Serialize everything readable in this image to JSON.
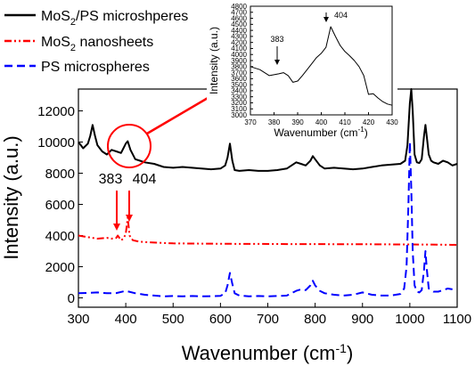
{
  "legend": [
    {
      "label_main": "MoS",
      "label_sub": "2",
      "label_rest": "/PS microshperes",
      "color": "#000000",
      "dash": "solid"
    },
    {
      "label_main": "MoS",
      "label_sub": "2",
      "label_rest": " nanosheets",
      "color": "#ff0000",
      "dash": "dashdotdot"
    },
    {
      "label_main": "PS microspheres",
      "label_sub": "",
      "label_rest": "",
      "color": "#0000ff",
      "dash": "dash"
    }
  ],
  "annotations": {
    "peak_a": "383",
    "peak_b": "404",
    "arrow_color": "#ff0000"
  },
  "chart_data": [
    {
      "type": "line",
      "xlabel_main": "Wavenumber (cm",
      "xlabel_sup": "-1",
      "xlabel_end": ")",
      "ylabel": "Intensity (a.u.)",
      "xlim": [
        300,
        1100
      ],
      "ylim": [
        -600,
        13400
      ],
      "xticks": [
        300,
        400,
        500,
        600,
        700,
        800,
        900,
        1000,
        1100
      ],
      "yticks": [
        0,
        2000,
        4000,
        6000,
        8000,
        10000,
        12000
      ],
      "series": [
        {
          "name": "MoS2/PS microshperes",
          "color": "#000000",
          "x": [
            300,
            310,
            320,
            325,
            330,
            335,
            340,
            350,
            360,
            370,
            380,
            390,
            395,
            400,
            404,
            410,
            420,
            430,
            440,
            460,
            480,
            500,
            520,
            540,
            560,
            580,
            600,
            610,
            615,
            620,
            625,
            630,
            640,
            660,
            680,
            700,
            720,
            740,
            750,
            760,
            770,
            780,
            790,
            795,
            800,
            810,
            820,
            840,
            860,
            880,
            900,
            920,
            940,
            960,
            980,
            990,
            995,
            1000,
            1003,
            1006,
            1010,
            1015,
            1020,
            1025,
            1030,
            1033,
            1036,
            1040,
            1045,
            1050,
            1060,
            1070,
            1080,
            1090,
            1100
          ],
          "y": [
            10000,
            9600,
            9900,
            10400,
            11100,
            10400,
            9800,
            9400,
            9200,
            9500,
            9400,
            9300,
            9600,
            9900,
            10050,
            9500,
            8900,
            8800,
            8700,
            8600,
            8400,
            8350,
            8400,
            8350,
            8300,
            8250,
            8300,
            8500,
            9000,
            9900,
            8800,
            8200,
            8150,
            8200,
            8150,
            8150,
            8200,
            8300,
            8500,
            8700,
            8600,
            8500,
            8800,
            9100,
            8900,
            8500,
            8300,
            8350,
            8300,
            8250,
            8300,
            8400,
            8500,
            8550,
            8600,
            8800,
            9800,
            12500,
            14200,
            12000,
            9200,
            8700,
            8650,
            8900,
            10400,
            11100,
            10300,
            9200,
            8800,
            8700,
            8600,
            8800,
            8700,
            8500,
            8600
          ]
        },
        {
          "name": "MoS2 nanosheets",
          "color": "#ff0000",
          "x": [
            300,
            320,
            340,
            360,
            370,
            380,
            383,
            390,
            395,
            400,
            404,
            408,
            415,
            430,
            460,
            500,
            560,
            620,
            680,
            740,
            800,
            860,
            920,
            980,
            1040,
            1100
          ],
          "y": [
            4000,
            3900,
            3800,
            3850,
            3800,
            3850,
            4000,
            3700,
            3800,
            4100,
            5150,
            4000,
            3700,
            3600,
            3550,
            3500,
            3480,
            3470,
            3460,
            3450,
            3450,
            3440,
            3440,
            3430,
            3420,
            3400
          ]
        },
        {
          "name": "PS microspheres",
          "color": "#0000ff",
          "x": [
            300,
            320,
            340,
            360,
            380,
            400,
            420,
            440,
            460,
            480,
            500,
            520,
            540,
            560,
            580,
            600,
            610,
            615,
            620,
            625,
            630,
            640,
            660,
            680,
            700,
            720,
            740,
            760,
            770,
            780,
            790,
            795,
            800,
            810,
            820,
            840,
            860,
            880,
            900,
            920,
            940,
            960,
            980,
            988,
            993,
            997,
            1000,
            1003,
            1006,
            1010,
            1015,
            1020,
            1025,
            1030,
            1033,
            1036,
            1040,
            1050,
            1060,
            1070,
            1080,
            1090
          ],
          "y": [
            300,
            320,
            350,
            300,
            310,
            450,
            300,
            200,
            150,
            100,
            120,
            100,
            120,
            100,
            110,
            130,
            300,
            800,
            1600,
            900,
            300,
            150,
            100,
            120,
            100,
            120,
            150,
            450,
            550,
            500,
            800,
            1100,
            800,
            450,
            300,
            200,
            150,
            200,
            350,
            200,
            150,
            150,
            250,
            600,
            2000,
            6000,
            10000,
            7000,
            3000,
            800,
            400,
            350,
            500,
            1800,
            3000,
            1800,
            600,
            400,
            400,
            500,
            600,
            550
          ]
        }
      ]
    },
    {
      "type": "line",
      "xlabel_main": "Wavenumber (cm",
      "xlabel_sup": "-1",
      "xlabel_end": ")",
      "ylabel": "Intensity (a.u.)",
      "xlim": [
        370,
        430
      ],
      "ylim": [
        3000,
        4800
      ],
      "xticks": [
        370,
        380,
        390,
        400,
        410,
        420,
        430
      ],
      "yticks": [
        3000,
        3100,
        3200,
        3300,
        3400,
        3500,
        3600,
        3700,
        3800,
        3900,
        4000,
        4100,
        4200,
        4300,
        4400,
        4500,
        4600,
        4700,
        4800
      ],
      "annotations": [
        "383",
        "404"
      ],
      "series": [
        {
          "color": "#000000",
          "x": [
            370,
            374,
            378,
            382,
            384,
            386,
            388,
            390,
            392,
            394,
            396,
            398,
            400,
            402,
            404,
            406,
            408,
            410,
            412,
            414,
            416,
            418,
            420,
            422,
            424,
            426,
            428,
            430
          ],
          "y": [
            3800,
            3750,
            3650,
            3680,
            3700,
            3650,
            3540,
            3560,
            3650,
            3750,
            3850,
            3950,
            4020,
            4120,
            4460,
            4300,
            4150,
            4050,
            3980,
            3900,
            3800,
            3650,
            3340,
            3350,
            3280,
            3220,
            3180,
            3160
          ]
        }
      ]
    }
  ]
}
